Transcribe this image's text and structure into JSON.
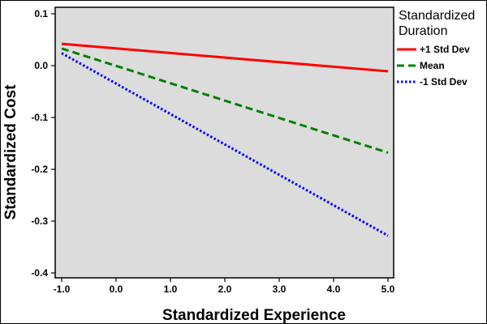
{
  "chart_data": {
    "type": "line",
    "title": "",
    "xlabel": "Standardized Experience",
    "ylabel": "Standardized Cost",
    "xlim": [
      -1.0,
      5.0
    ],
    "ylim": [
      -0.4,
      0.1
    ],
    "x_ticks": [
      -1.0,
      0.0,
      1.0,
      2.0,
      3.0,
      4.0,
      5.0
    ],
    "x_tick_labels": [
      "-1.0",
      "0.0",
      "1.0",
      "2.0",
      "3.0",
      "4.0",
      "5.0"
    ],
    "y_ticks": [
      0.1,
      0.0,
      -0.1,
      -0.2,
      -0.3,
      -0.4
    ],
    "y_tick_labels": [
      "0.1",
      "0.0",
      "-0.1",
      "-0.2",
      "-0.3",
      "-0.4"
    ],
    "grid": false,
    "plot_background": "#dcdcdc",
    "legend": {
      "title_line1": "Standardized",
      "title_line2": "Duration",
      "placement": "right"
    },
    "series": [
      {
        "name": "+1 Std Dev",
        "x": [
          -1.0,
          5.0
        ],
        "values": [
          0.042,
          -0.011
        ],
        "color": "#ff0000",
        "style": "solid"
      },
      {
        "name": "Mean",
        "x": [
          -1.0,
          5.0
        ],
        "values": [
          0.033,
          -0.168
        ],
        "color": "#008000",
        "style": "dashed"
      },
      {
        "name": "-1 Std Dev",
        "x": [
          -1.0,
          5.0
        ],
        "values": [
          0.024,
          -0.328
        ],
        "color": "#0000ff",
        "style": "dotted"
      }
    ]
  }
}
